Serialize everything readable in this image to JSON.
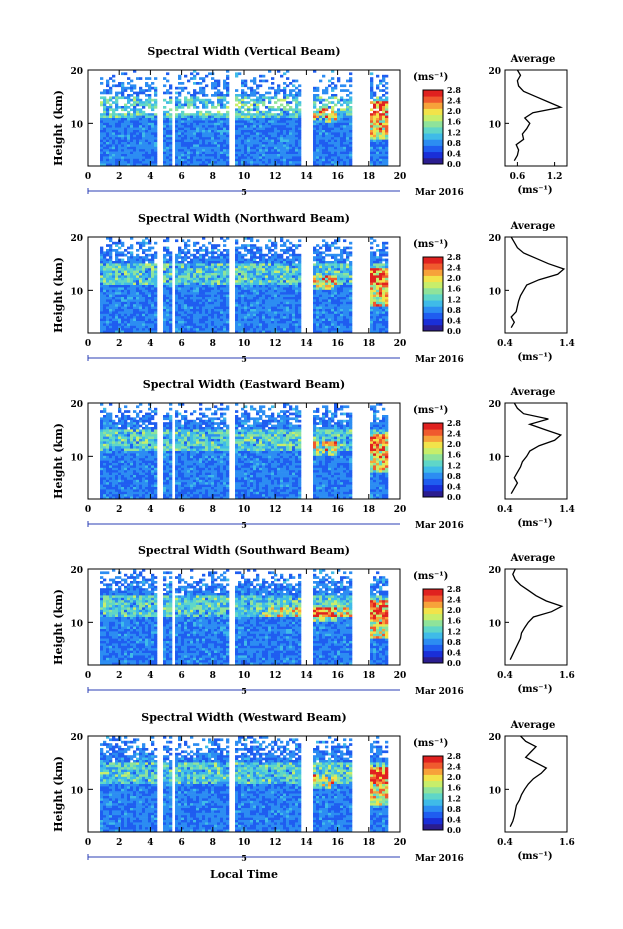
{
  "x_axis_label": "Local Time",
  "date_label": "Mar 2016",
  "day_marker": "5",
  "colorbar_unit": "(ms⁻¹)",
  "colorbar_ticks": [
    "0.0",
    "0.4",
    "0.8",
    "1.2",
    "1.6",
    "2.0",
    "2.4",
    "2.8"
  ],
  "x_ticks": [
    "0",
    "2",
    "4",
    "6",
    "8",
    "10",
    "12",
    "14",
    "16",
    "18",
    "20"
  ],
  "y_ticks": [
    "10",
    "20"
  ],
  "y_label": "Height (km)",
  "profile_title": "Average",
  "profile_unit": "(ms⁻¹)",
  "colormap": [
    "#2b1d8f",
    "#1a2fd8",
    "#1f5df0",
    "#2c8df2",
    "#3fbbe8",
    "#5fd6c8",
    "#8fe39a",
    "#c8ee6a",
    "#f2e34a",
    "#f7a23a",
    "#f05a2e",
    "#e0211f"
  ],
  "gaps_hours": [
    [
      0.0,
      0.8
    ],
    [
      4.4,
      4.8
    ],
    [
      5.3,
      5.6
    ],
    [
      9.1,
      9.4
    ],
    [
      13.6,
      14.5
    ],
    [
      17.0,
      18.0
    ],
    [
      19.2,
      20.0
    ]
  ],
  "chart_data": [
    {
      "type": "heatmap",
      "title": "Spectral Width (Vertical Beam)",
      "xlabel": "Local Time",
      "ylabel": "Height (km)",
      "xlim": [
        0,
        20
      ],
      "ylim": [
        2,
        20
      ],
      "clim": [
        0,
        2.8
      ],
      "profile": {
        "xticks": [
          "0.6",
          "1.2"
        ],
        "xlim": [
          0.4,
          1.4
        ],
        "points": [
          [
            0.55,
            3
          ],
          [
            0.6,
            4
          ],
          [
            0.62,
            5
          ],
          [
            0.58,
            6
          ],
          [
            0.7,
            7
          ],
          [
            0.68,
            8
          ],
          [
            0.75,
            9
          ],
          [
            0.8,
            10
          ],
          [
            0.72,
            11
          ],
          [
            0.85,
            12
          ],
          [
            1.3,
            13
          ],
          [
            1.1,
            14
          ],
          [
            0.9,
            15
          ],
          [
            0.7,
            16
          ],
          [
            0.62,
            17
          ],
          [
            0.6,
            18
          ],
          [
            0.65,
            19
          ],
          [
            0.6,
            20
          ]
        ]
      }
    },
    {
      "type": "heatmap",
      "title": "Spectral Width (Northward Beam)",
      "xlabel": "Local Time",
      "ylabel": "Height (km)",
      "xlim": [
        0,
        20
      ],
      "ylim": [
        2,
        20
      ],
      "clim": [
        0,
        2.8
      ],
      "profile": {
        "xticks": [
          "0.4",
          "1.4"
        ],
        "xlim": [
          0.4,
          1.4
        ],
        "points": [
          [
            0.5,
            3
          ],
          [
            0.55,
            4
          ],
          [
            0.5,
            5
          ],
          [
            0.58,
            6
          ],
          [
            0.6,
            7
          ],
          [
            0.62,
            8
          ],
          [
            0.65,
            9
          ],
          [
            0.7,
            10
          ],
          [
            0.75,
            11
          ],
          [
            0.95,
            12
          ],
          [
            1.25,
            13
          ],
          [
            1.35,
            14
          ],
          [
            1.1,
            15
          ],
          [
            0.9,
            16
          ],
          [
            0.7,
            17
          ],
          [
            0.6,
            18
          ],
          [
            0.55,
            19
          ],
          [
            0.5,
            20
          ]
        ]
      }
    },
    {
      "type": "heatmap",
      "title": "Spectral Width (Eastward Beam)",
      "xlabel": "Local Time",
      "ylabel": "Height (km)",
      "xlim": [
        0,
        20
      ],
      "ylim": [
        2,
        20
      ],
      "clim": [
        0,
        2.8
      ],
      "profile": {
        "xticks": [
          "0.4",
          "1.4"
        ],
        "xlim": [
          0.4,
          1.4
        ],
        "points": [
          [
            0.5,
            3
          ],
          [
            0.55,
            4
          ],
          [
            0.6,
            5
          ],
          [
            0.55,
            6
          ],
          [
            0.6,
            7
          ],
          [
            0.65,
            8
          ],
          [
            0.68,
            9
          ],
          [
            0.75,
            10
          ],
          [
            0.8,
            11
          ],
          [
            0.95,
            12
          ],
          [
            1.2,
            13
          ],
          [
            1.3,
            14
          ],
          [
            1.05,
            15
          ],
          [
            0.8,
            16
          ],
          [
            1.1,
            17
          ],
          [
            0.7,
            18
          ],
          [
            0.6,
            19
          ],
          [
            0.55,
            20
          ]
        ]
      }
    },
    {
      "type": "heatmap",
      "title": "Spectral Width (Southward Beam)",
      "xlabel": "Local Time",
      "ylabel": "Height (km)",
      "xlim": [
        0,
        20
      ],
      "ylim": [
        2,
        20
      ],
      "clim": [
        0,
        2.8
      ],
      "profile": {
        "xticks": [
          "0.4",
          "1.6"
        ],
        "xlim": [
          0.4,
          1.6
        ],
        "points": [
          [
            0.5,
            3
          ],
          [
            0.55,
            4
          ],
          [
            0.6,
            5
          ],
          [
            0.65,
            6
          ],
          [
            0.7,
            7
          ],
          [
            0.72,
            8
          ],
          [
            0.78,
            9
          ],
          [
            0.85,
            10
          ],
          [
            0.95,
            11
          ],
          [
            1.3,
            12
          ],
          [
            1.5,
            13
          ],
          [
            1.2,
            14
          ],
          [
            1.0,
            15
          ],
          [
            0.85,
            16
          ],
          [
            0.7,
            17
          ],
          [
            0.6,
            18
          ],
          [
            0.55,
            19
          ],
          [
            0.6,
            20
          ]
        ]
      }
    },
    {
      "type": "heatmap",
      "title": "Spectral Width (Westward Beam)",
      "xlabel": "Local Time",
      "ylabel": "Height (km)",
      "xlim": [
        0,
        20
      ],
      "ylim": [
        2,
        20
      ],
      "clim": [
        0,
        2.8
      ],
      "profile": {
        "xticks": [
          "0.4",
          "1.6"
        ],
        "xlim": [
          0.4,
          1.6
        ],
        "points": [
          [
            0.5,
            3
          ],
          [
            0.55,
            4
          ],
          [
            0.58,
            5
          ],
          [
            0.6,
            6
          ],
          [
            0.62,
            7
          ],
          [
            0.68,
            8
          ],
          [
            0.72,
            9
          ],
          [
            0.78,
            10
          ],
          [
            0.85,
            11
          ],
          [
            0.95,
            12
          ],
          [
            1.1,
            13
          ],
          [
            1.2,
            14
          ],
          [
            1.0,
            15
          ],
          [
            0.8,
            16
          ],
          [
            0.9,
            17
          ],
          [
            1.0,
            18
          ],
          [
            0.8,
            19
          ],
          [
            0.7,
            20
          ]
        ]
      }
    }
  ]
}
